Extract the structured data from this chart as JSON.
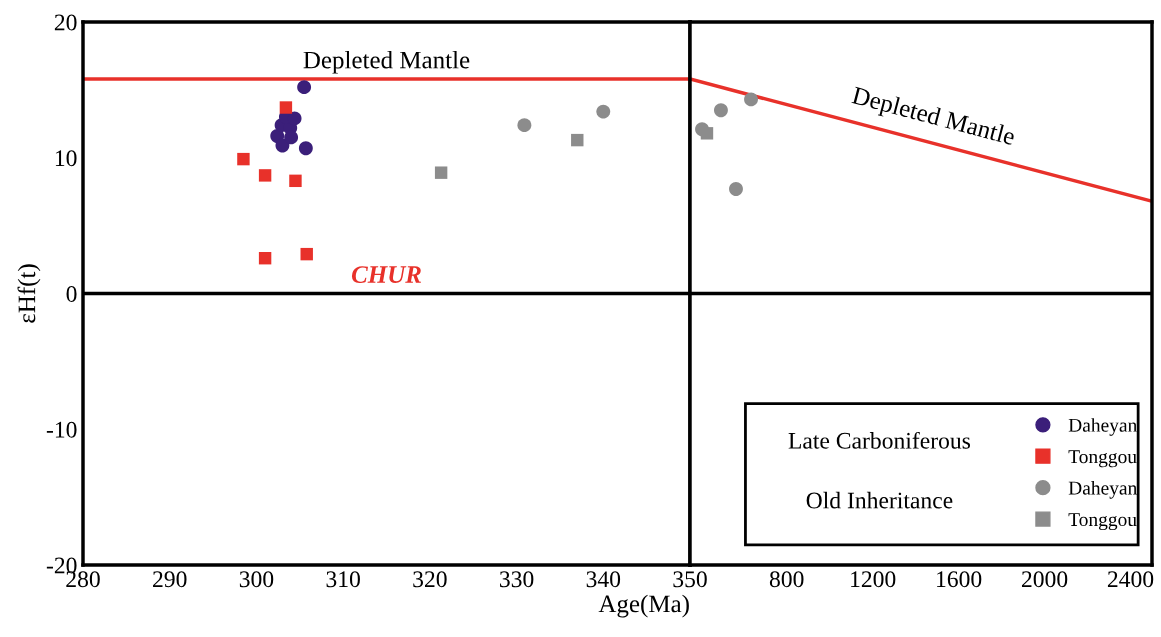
{
  "chart_data": [
    {
      "type": "scatter",
      "xlabel": "Age(Ma)",
      "ylabel": "εHf(t)",
      "xlim": [
        280,
        350
      ],
      "xticks": [
        280,
        290,
        300,
        310,
        320,
        330,
        340,
        350
      ],
      "ylim": [
        -20,
        20
      ],
      "yticks": [
        -20,
        -10,
        0,
        10,
        20
      ],
      "grid": false,
      "ref_lines": [
        {
          "axis": "y",
          "value": 0,
          "label": "CHUR",
          "color": "#000000"
        },
        {
          "axis": "y",
          "value": 15.8,
          "label": "Depleted Mantle",
          "color": "#e8312a"
        }
      ],
      "series": [
        {
          "color": "#3b1f7a",
          "marker": "circle",
          "x": [
            305.5,
            305.7,
            302.4,
            302.9,
            303.9,
            303.4,
            304.4,
            303.0,
            304.0
          ],
          "values": [
            15.2,
            10.7,
            11.6,
            12.4,
            12.2,
            13.0,
            12.9,
            10.9,
            11.5
          ]
        },
        {
          "color": "#e8312a",
          "marker": "square",
          "x": [
            303.4,
            298.5,
            301.0,
            304.5,
            301.0,
            305.8
          ],
          "values": [
            13.7,
            9.9,
            8.7,
            8.3,
            2.6,
            2.9
          ]
        },
        {
          "color": "#8c8c8c",
          "marker": "circle",
          "x": [
            330.9,
            340.0
          ],
          "values": [
            12.4,
            13.4
          ]
        },
        {
          "color": "#8c8c8c",
          "marker": "square",
          "x": [
            321.3,
            337.0
          ],
          "values": [
            8.9,
            11.3
          ]
        }
      ]
    },
    {
      "type": "scatter",
      "xlim": [
        350,
        2500
      ],
      "xticks": [
        800,
        1200,
        1600,
        2000,
        2400
      ],
      "ylim": [
        -20,
        20
      ],
      "yticks": [
        -20,
        -10,
        0,
        10,
        20
      ],
      "tick_labels": "x",
      "grid": false,
      "legend": "bottom right",
      "ref_lines": [
        {
          "axis": "y",
          "value": 0,
          "color": "#000000"
        }
      ],
      "annotations": [
        "Late Carboniferous",
        "Old Inheritance"
      ],
      "series": [
        {
          "type": "line",
          "name": "Depleted Mantle",
          "color": "#e8312a",
          "marker": "none",
          "x": [
            350,
            2500
          ],
          "values": [
            15.8,
            6.8
          ]
        },
        {
          "name": "Daheyan",
          "color": "#3b1f7a",
          "marker": "circle"
        },
        {
          "name": "Tonggou",
          "color": "#e8312a",
          "marker": "square"
        },
        {
          "name": "Daheyan",
          "color": "#8c8c8c",
          "marker": "circle",
          "x": [
            634,
            494,
            406,
            564
          ],
          "values": [
            14.3,
            13.5,
            12.1,
            7.7
          ]
        },
        {
          "name": "Tonggou",
          "color": "#8c8c8c",
          "marker": "square",
          "x": [
            429
          ],
          "values": [
            11.8
          ]
        }
      ]
    }
  ]
}
